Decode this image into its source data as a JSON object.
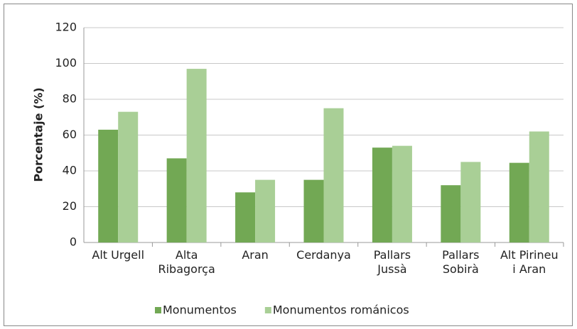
{
  "chart_data": {
    "type": "bar",
    "y_label": "Porcentaje (%)",
    "categories": [
      "Alt Urgell",
      "Alta\nRibagorça",
      "Aran",
      "Cerdanya",
      "Pallars\nJussà",
      "Pallars\nSobirà",
      "Alt Pirineu\ni Aran"
    ],
    "series": [
      {
        "name": "Monumentos",
        "color": "#72a854",
        "values": [
          63,
          47,
          28,
          35,
          53,
          32,
          44.5
        ]
      },
      {
        "name": "Monumentos románicos",
        "color": "#a9cf96",
        "values": [
          73,
          97,
          35,
          75,
          54,
          45,
          62
        ]
      }
    ],
    "ylim": [
      0,
      120
    ],
    "yticks": [
      0,
      20,
      40,
      60,
      80,
      100,
      120
    ],
    "grid": true,
    "legend": "bottom"
  }
}
